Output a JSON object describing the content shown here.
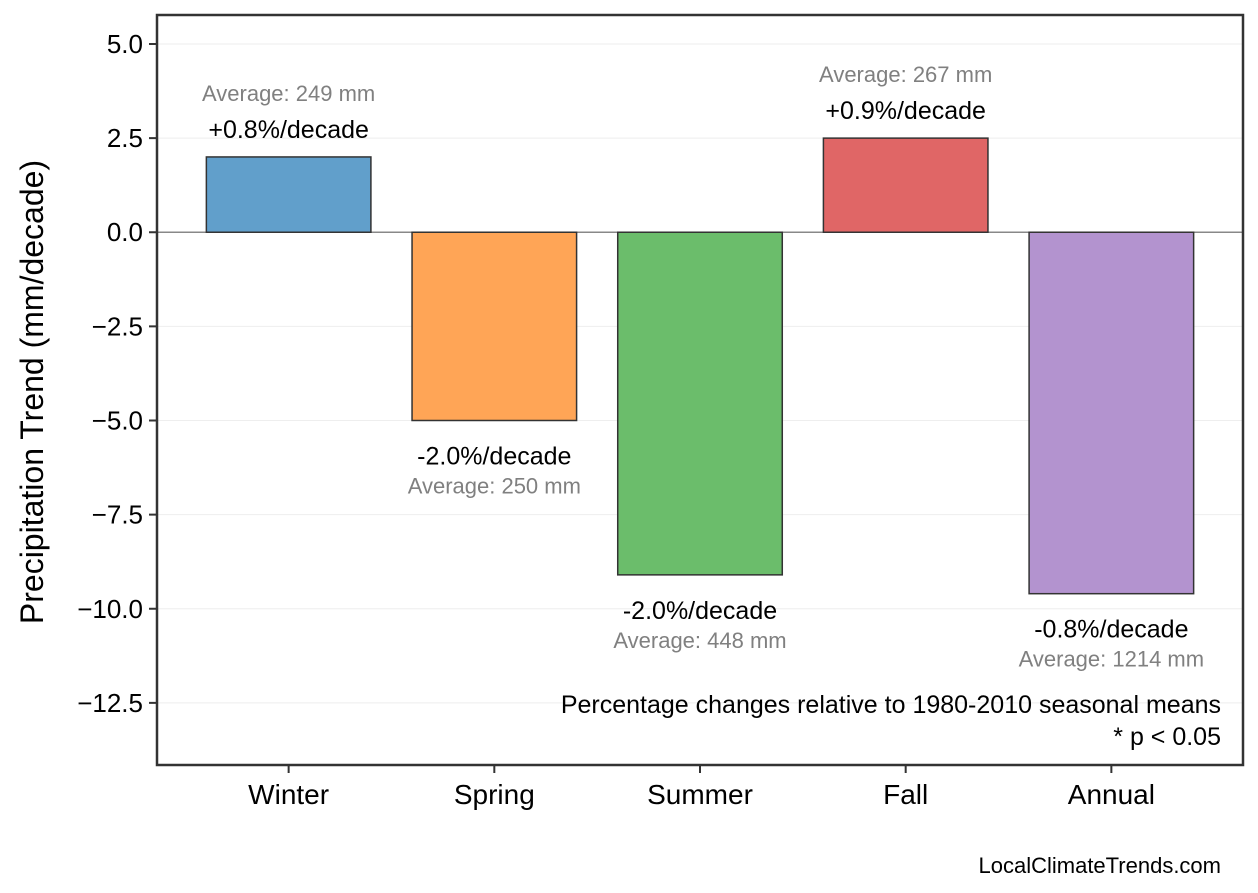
{
  "chart_data": {
    "type": "bar",
    "title": "",
    "xlabel": "",
    "ylabel": "Precipitation Trend (mm/decade)",
    "categories": [
      "Winter",
      "Spring",
      "Summer",
      "Fall",
      "Annual"
    ],
    "values": [
      2.0,
      -5.0,
      -9.1,
      2.5,
      -9.6
    ],
    "colors": [
      "#619fcb",
      "#ffa556",
      "#6bbd6b",
      "#e06666",
      "#b393cf"
    ],
    "pct_labels": [
      "+0.8%/decade",
      "-2.0%/decade",
      "-2.0%/decade",
      "+0.9%/decade",
      "-0.8%/decade"
    ],
    "avg_labels": [
      "Average: 249 mm",
      "Average: 250 mm",
      "Average: 448 mm",
      "Average: 267 mm",
      "Average: 1214 mm"
    ],
    "ylim": [
      -14.15,
      5.77
    ],
    "yticks": [
      5.0,
      2.5,
      0.0,
      -2.5,
      -5.0,
      -7.5,
      -10.0,
      -12.5
    ],
    "ytick_labels": [
      "5.0",
      "2.5",
      "0.0",
      "−2.5",
      "−5.0",
      "−7.5",
      "−10.0",
      "−12.5"
    ],
    "grid": true,
    "notes": [
      "Percentage changes relative to 1980-2010 seasonal means",
      "* p < 0.05"
    ],
    "source": "LocalClimateTrends.com"
  }
}
